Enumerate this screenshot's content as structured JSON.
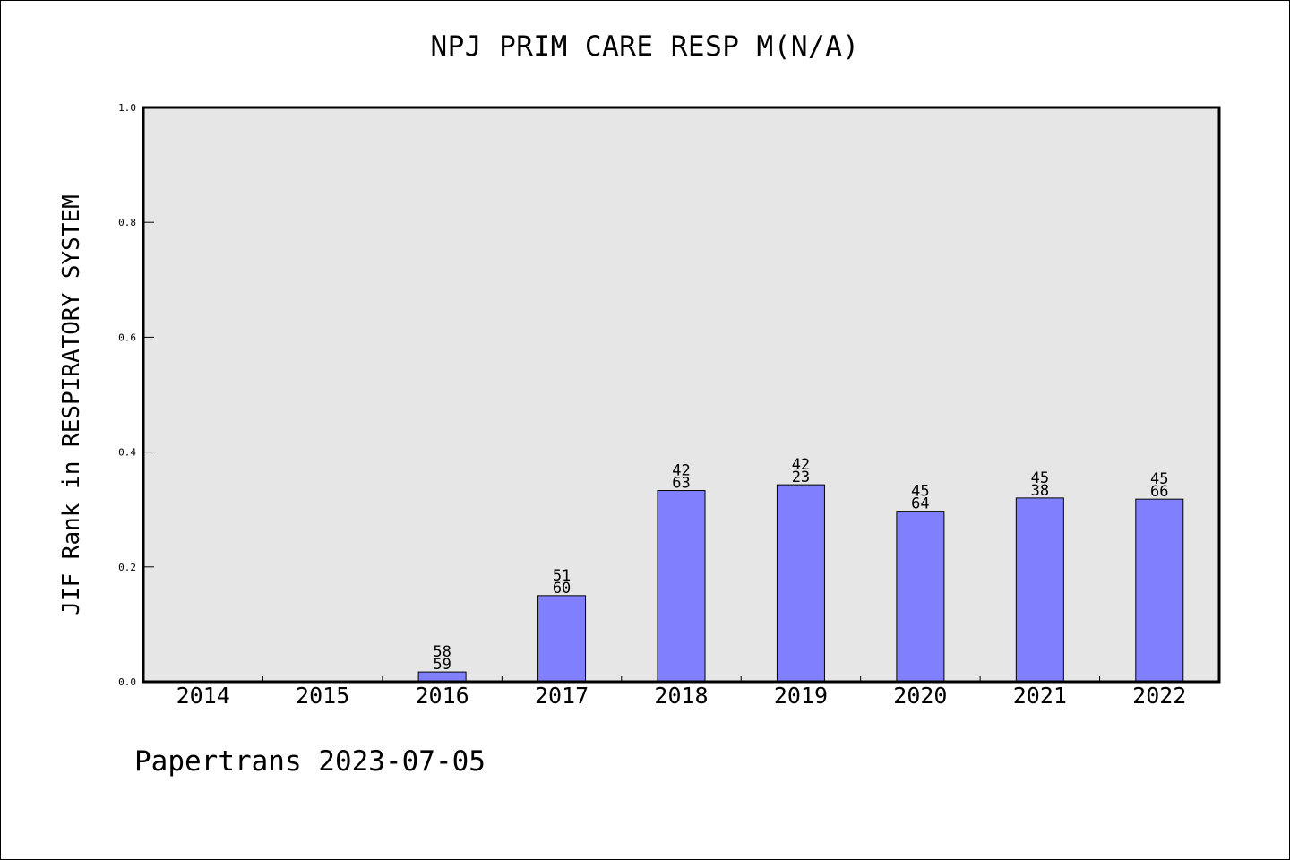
{
  "chart_data": {
    "type": "bar",
    "title": "NPJ PRIM CARE RESP M(N/A)",
    "ylabel": "JIF Rank in RESPIRATORY SYSTEM",
    "xlabel": "",
    "ylim": [
      0,
      1.0
    ],
    "yticks": [
      "0.0",
      "0.2",
      "0.4",
      "0.6",
      "0.8",
      "1.0"
    ],
    "categories": [
      "2014",
      "2015",
      "2016",
      "2017",
      "2018",
      "2019",
      "2020",
      "2021",
      "2022"
    ],
    "values": [
      0,
      0,
      0.017,
      0.15,
      0.333,
      0.343,
      0.297,
      0.32,
      0.318
    ],
    "labels": [
      null,
      null,
      [
        "58",
        "59"
      ],
      [
        "51",
        "60"
      ],
      [
        "42",
        "63"
      ],
      [
        "42",
        "23"
      ],
      [
        "45",
        "64"
      ],
      [
        "45",
        "38"
      ],
      [
        "45",
        "66"
      ]
    ],
    "grid": false,
    "bar_color": "#8080ff",
    "plot_background": "#e6e6e6"
  },
  "footer": "Papertrans 2023-07-05"
}
